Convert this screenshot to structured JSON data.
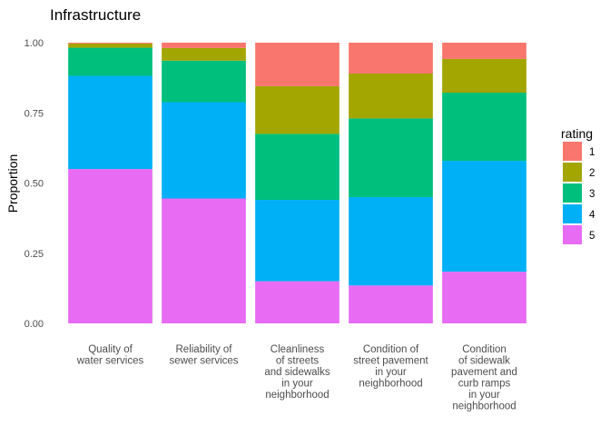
{
  "chart_data": {
    "type": "bar",
    "stacked": true,
    "title": "Infrastructure",
    "xlabel": "",
    "ylabel": "Proportion",
    "ylim": [
      0,
      1
    ],
    "yticks": [
      "0.00",
      "0.25",
      "0.50",
      "0.75",
      "1.00"
    ],
    "grid": false,
    "legend_position": "right",
    "legend_title": "rating",
    "categories": [
      [
        "Quality of",
        "water services"
      ],
      [
        "Reliability of",
        "sewer services"
      ],
      [
        "Cleanliness",
        "of streets",
        "and sidewalks",
        "in your",
        "neighborhood"
      ],
      [
        "Condition of",
        "street pavement",
        "in your",
        "neighborhood"
      ],
      [
        "Condition",
        "of sidewalk",
        "pavement and",
        "curb ramps",
        "in your",
        "neighborhood"
      ]
    ],
    "series": [
      {
        "name": "1",
        "color": "#F8766D",
        "values": [
          0.003,
          0.019,
          0.155,
          0.11,
          0.058
        ]
      },
      {
        "name": "2",
        "color": "#A3A500",
        "values": [
          0.015,
          0.045,
          0.17,
          0.16,
          0.12
        ]
      },
      {
        "name": "3",
        "color": "#00BF7D",
        "values": [
          0.1,
          0.148,
          0.235,
          0.28,
          0.243
        ]
      },
      {
        "name": "4",
        "color": "#00B0F6",
        "values": [
          0.332,
          0.343,
          0.29,
          0.315,
          0.395
        ]
      },
      {
        "name": "5",
        "color": "#E76BF3",
        "values": [
          0.55,
          0.445,
          0.15,
          0.135,
          0.184
        ]
      }
    ]
  }
}
